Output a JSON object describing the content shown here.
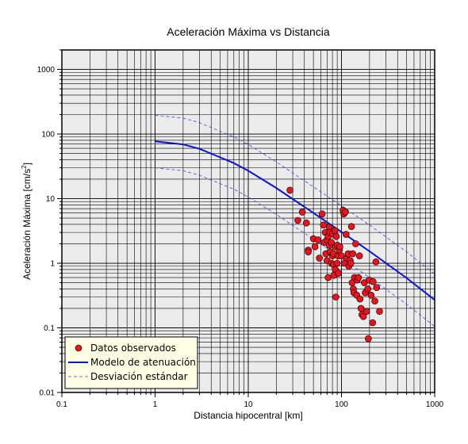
{
  "chart_data": {
    "type": "scatter",
    "title": "Aceleración Máxima vs Distancia",
    "xlabel": "Distancia hipocentral [km]",
    "ylabel_main": "Aceleración Máxima [cm/s",
    "ylabel_sup": "2",
    "ylabel_end": "]",
    "xscale": "log",
    "yscale": "log",
    "xlim": [
      0.1,
      1000
    ],
    "ylim": [
      0.01,
      2000
    ],
    "grid": true,
    "legend_position": "bottom-left",
    "x_ticks": [
      {
        "value": 0.1,
        "label": "0.1"
      },
      {
        "value": 1,
        "label": "1"
      },
      {
        "value": 10,
        "label": "10"
      },
      {
        "value": 100,
        "label": "100"
      },
      {
        "value": 1000,
        "label": "1000"
      }
    ],
    "y_ticks": [
      {
        "value": 0.01,
        "label": "0.01"
      },
      {
        "value": 0.1,
        "label": "0.1"
      },
      {
        "value": 1,
        "label": "1"
      },
      {
        "value": 10,
        "label": "10"
      },
      {
        "value": 100,
        "label": "100"
      },
      {
        "value": 1000,
        "label": "1000"
      }
    ],
    "colors": {
      "plot_background": "#ebebeb",
      "grid": "#000000",
      "observed": "#e8141e",
      "model": "#0a14d2",
      "std": "#3c46e6",
      "legend_background": "#ffffe6"
    },
    "series": [
      {
        "name": "Datos observados",
        "kind": "scatter",
        "points": [
          [
            28,
            13.5
          ],
          [
            34,
            4.6
          ],
          [
            38,
            6.2
          ],
          [
            42,
            4.2
          ],
          [
            44,
            1.6
          ],
          [
            44,
            1.5
          ],
          [
            50,
            2.4
          ],
          [
            52,
            1.8
          ],
          [
            56,
            2.3
          ],
          [
            58,
            1.2
          ],
          [
            62,
            5.8
          ],
          [
            64,
            3.9
          ],
          [
            65,
            2.1
          ],
          [
            67,
            3.0
          ],
          [
            68,
            1.4
          ],
          [
            70,
            2.3
          ],
          [
            70,
            1.1
          ],
          [
            72,
            2.6
          ],
          [
            72,
            0.6
          ],
          [
            74,
            3.6
          ],
          [
            74,
            1.9
          ],
          [
            75,
            3.0
          ],
          [
            76,
            1.5
          ],
          [
            78,
            2.1
          ],
          [
            78,
            1.0
          ],
          [
            80,
            2.9
          ],
          [
            80,
            1.3
          ],
          [
            82,
            1.4
          ],
          [
            82,
            0.95
          ],
          [
            83,
            0.65
          ],
          [
            85,
            3.2
          ],
          [
            86,
            1.8
          ],
          [
            86,
            0.8
          ],
          [
            87,
            0.3
          ],
          [
            88,
            2.6
          ],
          [
            90,
            1.9
          ],
          [
            90,
            1.0
          ],
          [
            92,
            1.3
          ],
          [
            93,
            0.7
          ],
          [
            95,
            1.6
          ],
          [
            96,
            1.8
          ],
          [
            100,
            1.3
          ],
          [
            104,
            6.6
          ],
          [
            106,
            5.8
          ],
          [
            108,
            1.0
          ],
          [
            110,
            6.2
          ],
          [
            112,
            2.8
          ],
          [
            114,
            1.2
          ],
          [
            118,
            1.4
          ],
          [
            120,
            0.9
          ],
          [
            124,
            1.1
          ],
          [
            126,
            1.0
          ],
          [
            128,
            3.7
          ],
          [
            130,
            0.5
          ],
          [
            132,
            1.4
          ],
          [
            134,
            0.4
          ],
          [
            136,
            0.35
          ],
          [
            138,
            0.6
          ],
          [
            142,
            2.0
          ],
          [
            146,
            0.32
          ],
          [
            148,
            0.55
          ],
          [
            152,
            0.6
          ],
          [
            156,
            1.3
          ],
          [
            158,
            0.28
          ],
          [
            162,
            0.2
          ],
          [
            166,
            0.16
          ],
          [
            172,
            0.15
          ],
          [
            176,
            0.5
          ],
          [
            180,
            0.35
          ],
          [
            186,
            0.18
          ],
          [
            192,
            0.4
          ],
          [
            194,
            0.068
          ],
          [
            198,
            0.55
          ],
          [
            208,
            0.32
          ],
          [
            216,
            0.12
          ],
          [
            218,
            0.52
          ],
          [
            228,
            0.26
          ],
          [
            234,
            1.05
          ],
          [
            238,
            0.42
          ],
          [
            256,
            0.18
          ]
        ]
      },
      {
        "name": "Modelo de atenuación",
        "kind": "line",
        "x": [
          1,
          2,
          3,
          5,
          7,
          10,
          20,
          50,
          100,
          200,
          500,
          1000
        ],
        "y": [
          77,
          69,
          59,
          43.5,
          35.5,
          27,
          14.6,
          6.0,
          3.05,
          1.53,
          0.59,
          0.27
        ]
      },
      {
        "name": "Desviación estándar",
        "kind": "line",
        "dashed": true,
        "x": [
          1,
          2,
          3,
          5,
          7,
          10,
          20,
          50,
          100,
          200,
          500,
          1000
        ],
        "y": [
          195,
          176,
          150,
          110,
          90,
          69,
          37,
          15.2,
          7.75,
          3.9,
          1.5,
          0.68
        ]
      },
      {
        "name": "",
        "kind": "line",
        "dashed": true,
        "x": [
          1,
          2,
          3,
          5,
          7,
          10,
          20,
          50,
          100,
          200,
          500,
          1000
        ],
        "y": [
          30,
          27,
          23,
          17,
          14,
          10.6,
          5.7,
          2.36,
          1.2,
          0.6,
          0.232,
          0.105
        ]
      }
    ]
  }
}
